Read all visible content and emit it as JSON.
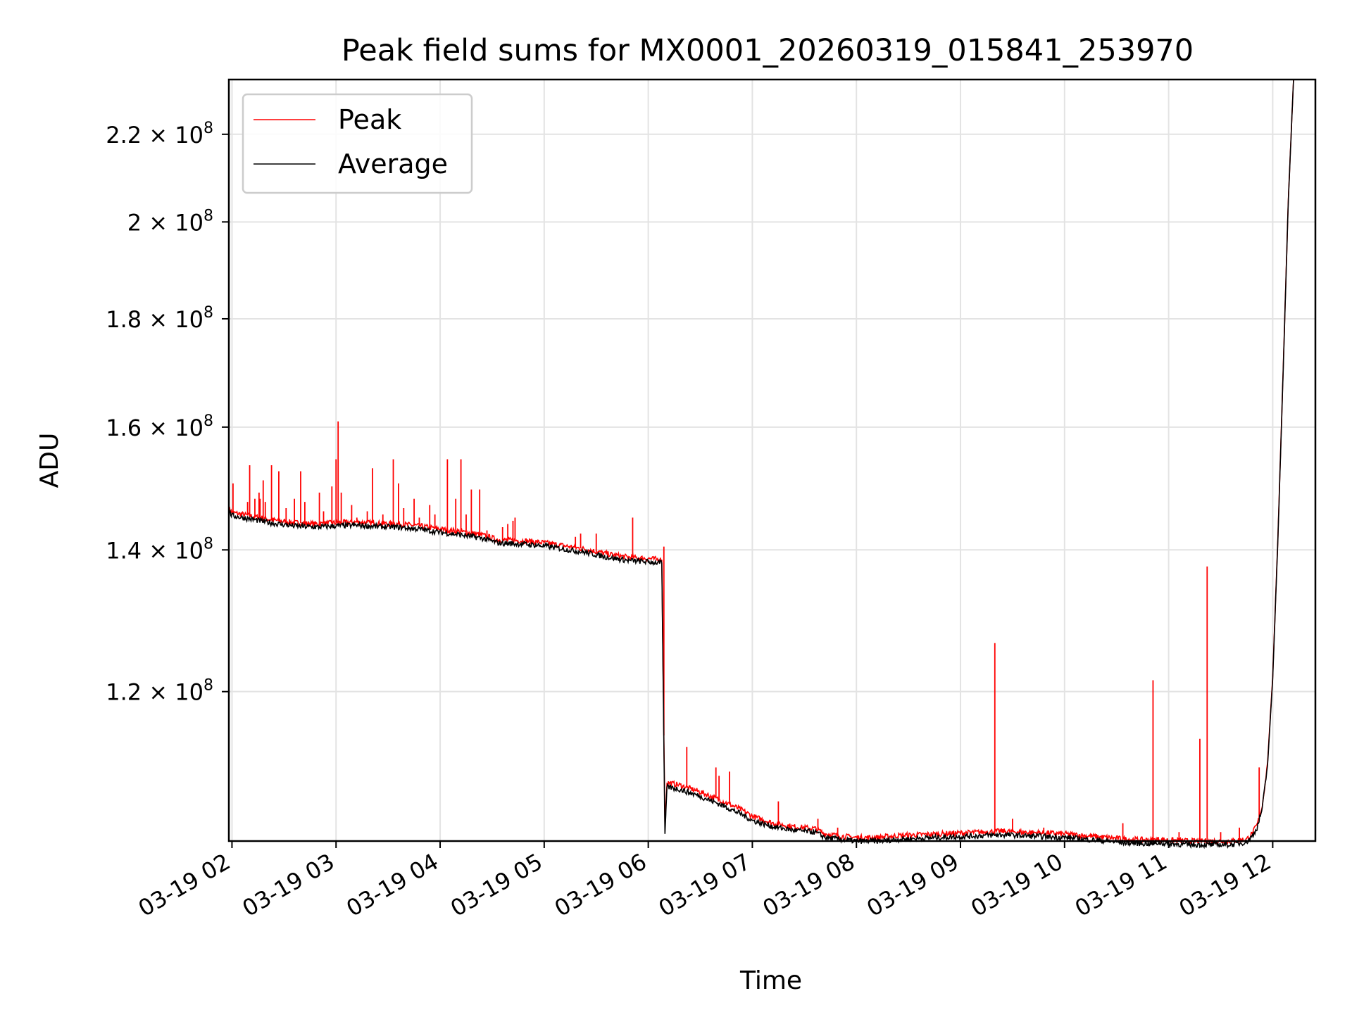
{
  "chart_data": {
    "type": "line",
    "title": "Peak field sums for MX0001_20260319_015841_253970",
    "xlabel": "Time",
    "ylabel": "ADU",
    "yscale": "log",
    "xlim": [
      1.97,
      12.41
    ],
    "ylim": [
      102000000,
      233500000
    ],
    "grid": true,
    "legend_position": "top-left",
    "x_ticks": [
      {
        "value": 2,
        "label": "03-19 02"
      },
      {
        "value": 3,
        "label": "03-19 03"
      },
      {
        "value": 4,
        "label": "03-19 04"
      },
      {
        "value": 5,
        "label": "03-19 05"
      },
      {
        "value": 6,
        "label": "03-19 06"
      },
      {
        "value": 7,
        "label": "03-19 07"
      },
      {
        "value": 8,
        "label": "03-19 08"
      },
      {
        "value": 9,
        "label": "03-19 09"
      },
      {
        "value": 10,
        "label": "03-19 10"
      },
      {
        "value": 11,
        "label": "03-19 11"
      },
      {
        "value": 12,
        "label": "03-19 12"
      }
    ],
    "y_ticks": [
      {
        "value": 120000000,
        "mantissa": "1.2",
        "base": "10",
        "exp": "8"
      },
      {
        "value": 140000000,
        "mantissa": "1.4",
        "base": "10",
        "exp": "8"
      },
      {
        "value": 160000000,
        "mantissa": "1.6",
        "base": "10",
        "exp": "8"
      },
      {
        "value": 180000000,
        "mantissa": "1.8",
        "base": "10",
        "exp": "8"
      },
      {
        "value": 200000000,
        "mantissa": "2",
        "base": "10",
        "exp": "8"
      },
      {
        "value": 220000000,
        "mantissa": "2.2",
        "base": "10",
        "exp": "8"
      }
    ],
    "series": [
      {
        "name": "Peak",
        "color": "#ff0000",
        "x": [
          1.97,
          2.0,
          2.17,
          2.4,
          2.6,
          2.8,
          3.0,
          3.2,
          3.4,
          3.6,
          3.8,
          4.0,
          4.2,
          4.4,
          4.55,
          4.6,
          4.8,
          5.0,
          5.2,
          5.4,
          5.6,
          5.8,
          6.0,
          6.13,
          6.16,
          6.18,
          6.3,
          6.5,
          6.7,
          6.9,
          7.0,
          7.2,
          7.4,
          7.6,
          7.7,
          7.9,
          8.0,
          8.2,
          8.4,
          8.6,
          8.8,
          9.0,
          9.2,
          9.4,
          9.6,
          9.8,
          10.0,
          10.2,
          10.4,
          10.6,
          10.85,
          10.9,
          11.0,
          11.2,
          11.4,
          11.6,
          11.75,
          11.8,
          11.85,
          11.9,
          11.95,
          12.0,
          12.05,
          12.1,
          12.15,
          12.2
        ],
        "y": [
          146500000,
          145800000,
          145300000,
          144600000,
          144200000,
          144000000,
          144200000,
          144300000,
          144100000,
          144000000,
          143700000,
          143200000,
          142800000,
          142300000,
          141600000,
          141500000,
          141400000,
          141100000,
          140600000,
          140100000,
          139400000,
          138900000,
          138700000,
          138500000,
          104000000,
          108700000,
          108400000,
          107600000,
          106600000,
          105500000,
          104800000,
          104000000,
          103600000,
          103400000,
          102800000,
          102500000,
          102400000,
          102400000,
          102600000,
          102700000,
          102800000,
          102900000,
          103000000,
          103100000,
          103000000,
          102900000,
          102800000,
          102600000,
          102400000,
          102200000,
          102100000,
          102200000,
          102100000,
          102000000,
          102000000,
          102000000,
          102200000,
          102800000,
          103800000,
          106000000,
          111000000,
          122000000,
          142000000,
          170000000,
          205000000,
          233500000
        ],
        "spikes": [
          {
            "x": 2.01,
            "y": 150500000
          },
          {
            "x": 2.15,
            "y": 147500000
          },
          {
            "x": 2.17,
            "y": 153500000
          },
          {
            "x": 2.22,
            "y": 148000000
          },
          {
            "x": 2.26,
            "y": 149000000
          },
          {
            "x": 2.27,
            "y": 148000000
          },
          {
            "x": 2.3,
            "y": 151000000
          },
          {
            "x": 2.32,
            "y": 147500000
          },
          {
            "x": 2.38,
            "y": 153500000
          },
          {
            "x": 2.45,
            "y": 152500000
          },
          {
            "x": 2.52,
            "y": 146500000
          },
          {
            "x": 2.6,
            "y": 148000000
          },
          {
            "x": 2.66,
            "y": 152500000
          },
          {
            "x": 2.7,
            "y": 147500000
          },
          {
            "x": 2.84,
            "y": 149000000
          },
          {
            "x": 2.88,
            "y": 146000000
          },
          {
            "x": 2.96,
            "y": 150000000
          },
          {
            "x": 3.0,
            "y": 154500000
          },
          {
            "x": 3.02,
            "y": 161000000
          },
          {
            "x": 3.05,
            "y": 149000000
          },
          {
            "x": 3.15,
            "y": 147000000
          },
          {
            "x": 3.2,
            "y": 145000000
          },
          {
            "x": 3.3,
            "y": 146000000
          },
          {
            "x": 3.35,
            "y": 153000000
          },
          {
            "x": 3.45,
            "y": 145500000
          },
          {
            "x": 3.55,
            "y": 154500000
          },
          {
            "x": 3.6,
            "y": 150500000
          },
          {
            "x": 3.65,
            "y": 146500000
          },
          {
            "x": 3.75,
            "y": 148000000
          },
          {
            "x": 3.8,
            "y": 145000000
          },
          {
            "x": 3.9,
            "y": 147000000
          },
          {
            "x": 3.95,
            "y": 145500000
          },
          {
            "x": 4.07,
            "y": 154500000
          },
          {
            "x": 4.15,
            "y": 148000000
          },
          {
            "x": 4.2,
            "y": 154500000
          },
          {
            "x": 4.25,
            "y": 145500000
          },
          {
            "x": 4.3,
            "y": 149500000
          },
          {
            "x": 4.38,
            "y": 149500000
          },
          {
            "x": 4.45,
            "y": 143000000
          },
          {
            "x": 4.6,
            "y": 143500000
          },
          {
            "x": 4.65,
            "y": 144000000
          },
          {
            "x": 4.7,
            "y": 144500000
          },
          {
            "x": 4.72,
            "y": 145000000
          },
          {
            "x": 5.3,
            "y": 142000000
          },
          {
            "x": 5.35,
            "y": 142500000
          },
          {
            "x": 5.5,
            "y": 142500000
          },
          {
            "x": 5.85,
            "y": 145000000
          },
          {
            "x": 6.15,
            "y": 140500000
          },
          {
            "x": 6.37,
            "y": 113000000
          },
          {
            "x": 6.65,
            "y": 110500000
          },
          {
            "x": 6.68,
            "y": 109500000
          },
          {
            "x": 6.78,
            "y": 110000000
          },
          {
            "x": 7.25,
            "y": 106500000
          },
          {
            "x": 7.63,
            "y": 104500000
          },
          {
            "x": 7.82,
            "y": 103500000
          },
          {
            "x": 9.33,
            "y": 126500000
          },
          {
            "x": 9.5,
            "y": 104500000
          },
          {
            "x": 9.8,
            "y": 103500000
          },
          {
            "x": 10.56,
            "y": 104000000
          },
          {
            "x": 10.85,
            "y": 121500000
          },
          {
            "x": 11.1,
            "y": 103000000
          },
          {
            "x": 11.3,
            "y": 114000000
          },
          {
            "x": 11.37,
            "y": 137500000
          },
          {
            "x": 11.5,
            "y": 103000000
          },
          {
            "x": 11.68,
            "y": 103500000
          },
          {
            "x": 11.87,
            "y": 110500000
          }
        ]
      },
      {
        "name": "Average",
        "color": "#000000",
        "x": [
          1.97,
          2.0,
          2.17,
          2.4,
          2.6,
          2.8,
          3.0,
          3.2,
          3.4,
          3.6,
          3.8,
          4.0,
          4.2,
          4.4,
          4.55,
          4.6,
          4.8,
          5.0,
          5.2,
          5.4,
          5.6,
          5.8,
          6.0,
          6.13,
          6.16,
          6.18,
          6.3,
          6.5,
          6.7,
          6.9,
          7.0,
          7.2,
          7.4,
          7.6,
          7.7,
          7.9,
          8.0,
          8.2,
          8.4,
          8.6,
          8.8,
          9.0,
          9.2,
          9.4,
          9.6,
          9.8,
          10.0,
          10.2,
          10.4,
          10.6,
          10.85,
          10.9,
          11.0,
          11.2,
          11.4,
          11.6,
          11.75,
          11.8,
          11.85,
          11.9,
          11.95,
          12.0,
          12.05,
          12.1,
          12.15,
          12.2
        ],
        "y": [
          146000000,
          145300000,
          144800000,
          144100000,
          143700000,
          143500000,
          143700000,
          143800000,
          143600000,
          143500000,
          143200000,
          142700000,
          142300000,
          141800000,
          141100000,
          141000000,
          140900000,
          140600000,
          140100000,
          139600000,
          138900000,
          138400000,
          138200000,
          138000000,
          102800000,
          108200000,
          107900000,
          107100000,
          106100000,
          105000000,
          104300000,
          103600000,
          103200000,
          103000000,
          102400000,
          102100000,
          102000000,
          102000000,
          102200000,
          102300000,
          102400000,
          102500000,
          102600000,
          102700000,
          102600000,
          102500000,
          102400000,
          102200000,
          102000000,
          101800000,
          101700000,
          101800000,
          101700000,
          101600000,
          101600000,
          101600000,
          101900000,
          102500000,
          103500000,
          105700000,
          110700000,
          121700000,
          141700000,
          169700000,
          204700000,
          233500000
        ]
      }
    ]
  }
}
